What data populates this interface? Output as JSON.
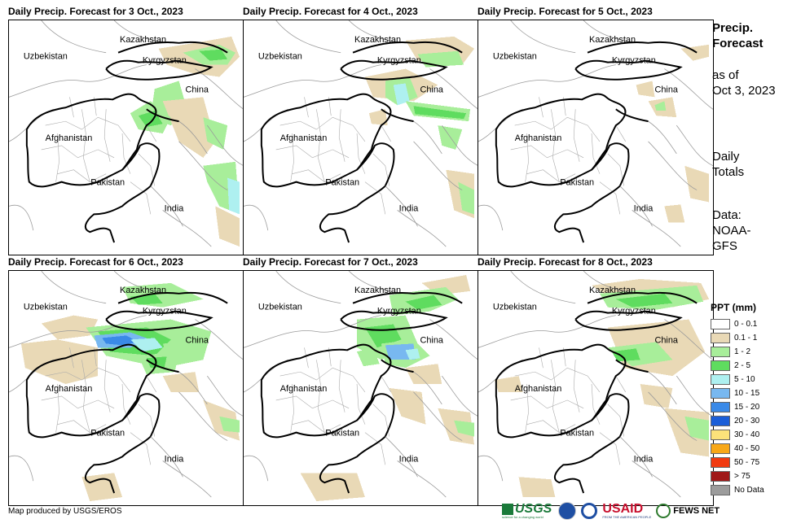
{
  "panels": [
    {
      "title": "Daily Precip. Forecast for 3 Oct., 2023"
    },
    {
      "title": "Daily Precip. Forecast for 4 Oct., 2023"
    },
    {
      "title": "Daily Precip. Forecast for 5 Oct., 2023"
    },
    {
      "title": "Daily Precip. Forecast for 6 Oct., 2023"
    },
    {
      "title": "Daily Precip. Forecast for 7 Oct., 2023"
    },
    {
      "title": "Daily Precip. Forecast for 8 Oct., 2023"
    }
  ],
  "map_labels": {
    "kazakhstan": "Kazakhstan",
    "uzbekistan": "Uzbekistan",
    "kyrgyzstan": "Kyrgyzstan",
    "china": "China",
    "afghanistan": "Afghanistan",
    "pakistan": "Pakistan",
    "india": "India"
  },
  "sidebar": {
    "title_line1": "Precip.",
    "title_line2": "Forecast",
    "asof_line1": "as of",
    "asof_line2": "Oct 3, 2023",
    "totals_line1": "Daily",
    "totals_line2": "Totals",
    "data_line1": "Data:",
    "data_line2": "NOAA-",
    "data_line3": "GFS"
  },
  "legend": {
    "title": "PPT (mm)",
    "items": [
      {
        "label": "0 - 0.1",
        "color": "#ffffff"
      },
      {
        "label": "0.1 - 1",
        "color": "#e9d9b6"
      },
      {
        "label": "1 - 2",
        "color": "#a8ee9a"
      },
      {
        "label": "2 - 5",
        "color": "#5fdc5f"
      },
      {
        "label": "5 - 10",
        "color": "#aef0f0"
      },
      {
        "label": "10 - 15",
        "color": "#78b8f0"
      },
      {
        "label": "15 - 20",
        "color": "#3a8ae8"
      },
      {
        "label": "20 - 30",
        "color": "#1a5ed8"
      },
      {
        "label": "30 - 40",
        "color": "#fbe27a"
      },
      {
        "label": "40 - 50",
        "color": "#f8a818"
      },
      {
        "label": "50 - 75",
        "color": "#f03a10"
      },
      {
        "label": "> 75",
        "color": "#a01818"
      },
      {
        "label": "No Data",
        "color": "#9c9c9c"
      }
    ]
  },
  "footer": {
    "credit": "Map produced by USGS/EROS",
    "usgs": "USGS",
    "usgs_tagline": "science for a changing world",
    "usaid": "USAID",
    "usaid_tagline": "FROM THE AMERICAN PEOPLE",
    "fewsnet": "FEWS NET"
  }
}
